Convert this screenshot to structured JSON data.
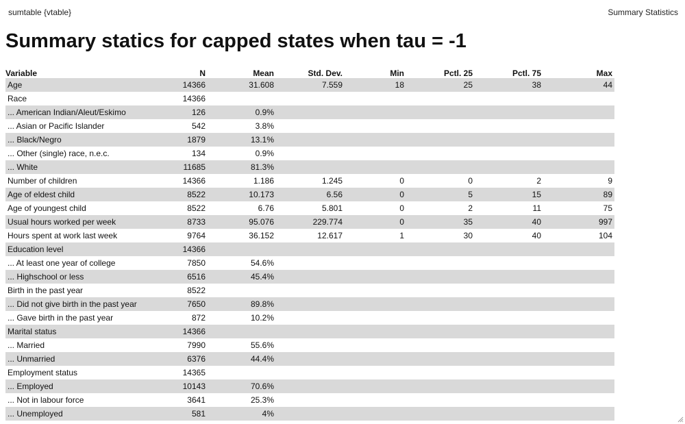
{
  "window": {
    "left_title": "sumtable {vtable}",
    "right_title": "Summary Statistics"
  },
  "page": {
    "title": "Summary statics for capped states when tau = -1"
  },
  "table": {
    "columns": [
      "Variable",
      "N",
      "Mean",
      "Std. Dev.",
      "Min",
      "Pctl. 25",
      "Pctl. 75",
      "Max"
    ],
    "rows": [
      [
        "Age",
        "14366",
        "31.608",
        "7.559",
        "18",
        "25",
        "38",
        "44"
      ],
      [
        "Race",
        "14366",
        "",
        "",
        "",
        "",
        "",
        ""
      ],
      [
        "... American Indian/Aleut/Eskimo",
        "126",
        "0.9%",
        "",
        "",
        "",
        "",
        ""
      ],
      [
        "... Asian or Pacific Islander",
        "542",
        "3.8%",
        "",
        "",
        "",
        "",
        ""
      ],
      [
        "... Black/Negro",
        "1879",
        "13.1%",
        "",
        "",
        "",
        "",
        ""
      ],
      [
        "... Other (single) race, n.e.c.",
        "134",
        "0.9%",
        "",
        "",
        "",
        "",
        ""
      ],
      [
        "... White",
        "11685",
        "81.3%",
        "",
        "",
        "",
        "",
        ""
      ],
      [
        "Number of children",
        "14366",
        "1.186",
        "1.245",
        "0",
        "0",
        "2",
        "9"
      ],
      [
        "Age of eldest child",
        "8522",
        "10.173",
        "6.56",
        "0",
        "5",
        "15",
        "89"
      ],
      [
        "Age of youngest child",
        "8522",
        "6.76",
        "5.801",
        "0",
        "2",
        "11",
        "75"
      ],
      [
        "Usual hours worked per week",
        "8733",
        "95.076",
        "229.774",
        "0",
        "35",
        "40",
        "997"
      ],
      [
        "Hours spent at work last week",
        "9764",
        "36.152",
        "12.617",
        "1",
        "30",
        "40",
        "104"
      ],
      [
        "Education level",
        "14366",
        "",
        "",
        "",
        "",
        "",
        ""
      ],
      [
        "... At least one year of college",
        "7850",
        "54.6%",
        "",
        "",
        "",
        "",
        ""
      ],
      [
        "... Highschool or less",
        "6516",
        "45.4%",
        "",
        "",
        "",
        "",
        ""
      ],
      [
        "Birth in the past year",
        "8522",
        "",
        "",
        "",
        "",
        "",
        ""
      ],
      [
        "... Did not give birth in the past year",
        "7650",
        "89.8%",
        "",
        "",
        "",
        "",
        ""
      ],
      [
        "... Gave birth in the past year",
        "872",
        "10.2%",
        "",
        "",
        "",
        "",
        ""
      ],
      [
        "Marital status",
        "14366",
        "",
        "",
        "",
        "",
        "",
        ""
      ],
      [
        "... Married",
        "7990",
        "55.6%",
        "",
        "",
        "",
        "",
        ""
      ],
      [
        "... Unmarried",
        "6376",
        "44.4%",
        "",
        "",
        "",
        "",
        ""
      ],
      [
        "Employment status",
        "14365",
        "",
        "",
        "",
        "",
        "",
        ""
      ],
      [
        "... Employed",
        "10143",
        "70.6%",
        "",
        "",
        "",
        "",
        ""
      ],
      [
        "... Not in labour force",
        "3641",
        "25.3%",
        "",
        "",
        "",
        "",
        ""
      ],
      [
        "... Unemployed",
        "581",
        "4%",
        "",
        "",
        "",
        "",
        ""
      ]
    ]
  },
  "colors": {
    "stripe": "#d9d9d9",
    "background": "#ffffff",
    "text": "#111111"
  },
  "icons": {
    "resize_grip": "resize-grip-icon"
  }
}
